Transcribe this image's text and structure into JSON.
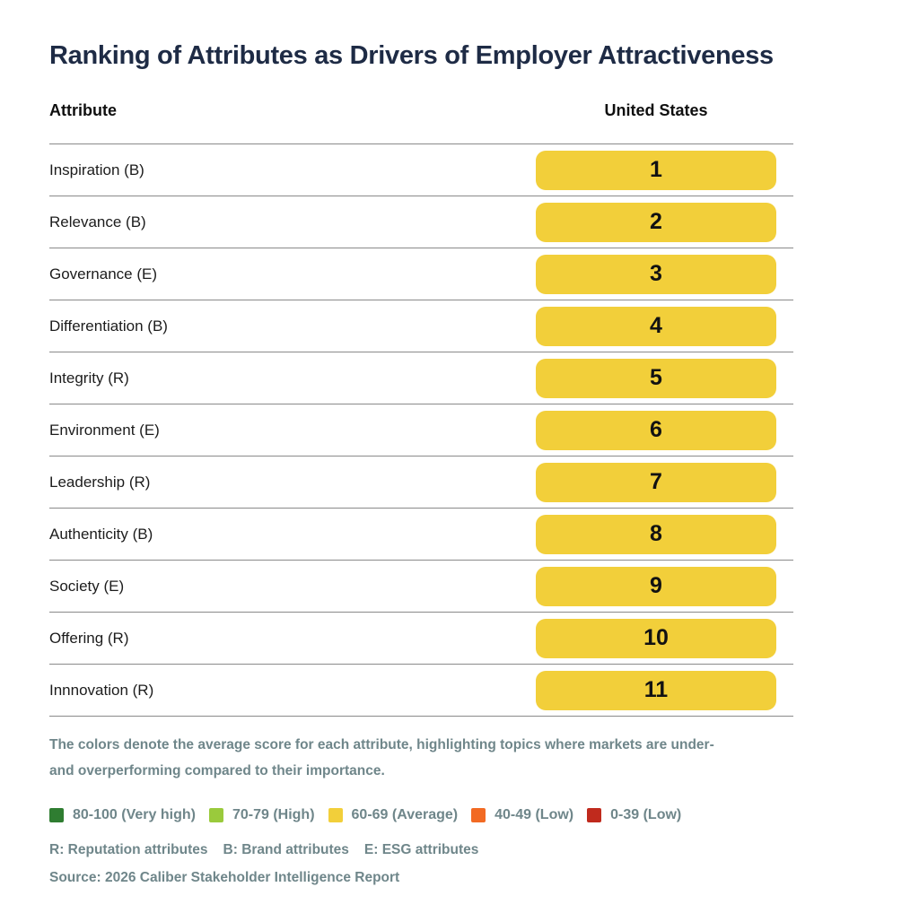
{
  "title": "Ranking of Attributes as Drivers of Employer Attractiveness",
  "table": {
    "attribute_header": "Attribute",
    "country_header": "United States",
    "rows": [
      {
        "attribute": "Inspiration (B)",
        "rank": "1"
      },
      {
        "attribute": "Relevance (B)",
        "rank": "2"
      },
      {
        "attribute": "Governance (E)",
        "rank": "3"
      },
      {
        "attribute": "Differentiation (B)",
        "rank": "4"
      },
      {
        "attribute": "Integrity (R)",
        "rank": "5"
      },
      {
        "attribute": "Environment (E)",
        "rank": "6"
      },
      {
        "attribute": "Leadership (R)",
        "rank": "7"
      },
      {
        "attribute": "Authenticity (B)",
        "rank": "8"
      },
      {
        "attribute": "Society (E)",
        "rank": "9"
      },
      {
        "attribute": "Offering (R)",
        "rank": "10"
      },
      {
        "attribute": "Innnovation (R)",
        "rank": "11"
      }
    ]
  },
  "footnote": "The colors denote the average score for each attribute, highlighting topics where markets are under-\nand overperforming compared to their importance.",
  "legend": [
    {
      "label": "80-100 (Very high)",
      "color": "#2f7d31"
    },
    {
      "label": "70-79 (High)",
      "color": "#9aca3c"
    },
    {
      "label": "60-69 (Average)",
      "color": "#f2cf3a"
    },
    {
      "label": "40-49 (Low)",
      "color": "#f26a23"
    },
    {
      "label": "0-39 (Low)",
      "color": "#c02a1d"
    }
  ],
  "abbreviations": [
    "R: Reputation attributes",
    "B: Brand attributes",
    "E: ESG attributes"
  ],
  "source": "Source: 2026 Caliber Stakeholder Intelligence Report",
  "colors": {
    "title_navy": "#1e2b45",
    "rank_fill": "#f2cf3a",
    "note_slate": "#6f868a",
    "line_gray": "#8a8a8a"
  },
  "chart_data": {
    "type": "table",
    "title": "Ranking of Attributes as Drivers of Employer Attractiveness",
    "columns": [
      "Attribute",
      "United States"
    ],
    "rows": [
      [
        "Inspiration (B)",
        1
      ],
      [
        "Relevance (B)",
        2
      ],
      [
        "Governance (E)",
        3
      ],
      [
        "Differentiation (B)",
        4
      ],
      [
        "Integrity (R)",
        5
      ],
      [
        "Environment (E)",
        6
      ],
      [
        "Leadership (R)",
        7
      ],
      [
        "Authenticity (B)",
        8
      ],
      [
        "Society (E)",
        9
      ],
      [
        "Offering (R)",
        10
      ],
      [
        "Innnovation (R)",
        11
      ]
    ],
    "cell_fill_band": "60-69 (Average)",
    "cell_fill_color": "#f2cf3a",
    "score_bands": [
      {
        "range": "80-100",
        "label": "Very high",
        "color": "#2f7d31"
      },
      {
        "range": "70-79",
        "label": "High",
        "color": "#9aca3c"
      },
      {
        "range": "60-69",
        "label": "Average",
        "color": "#f2cf3a"
      },
      {
        "range": "40-49",
        "label": "Low",
        "color": "#f26a23"
      },
      {
        "range": "0-39",
        "label": "Low",
        "color": "#c02a1d"
      }
    ],
    "attribute_key": {
      "R": "Reputation attributes",
      "B": "Brand attributes",
      "E": "ESG attributes"
    }
  }
}
